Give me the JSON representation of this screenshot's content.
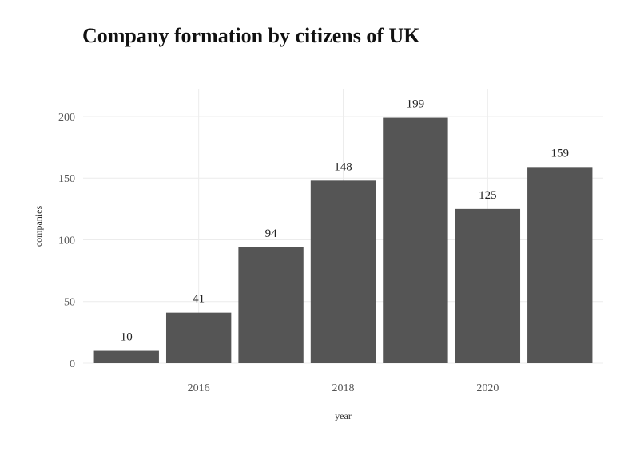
{
  "chart_data": {
    "type": "bar",
    "title": "Company formation by citizens of UK",
    "xlabel": "year",
    "ylabel": "companies",
    "categories": [
      2015,
      2016,
      2017,
      2018,
      2019,
      2020,
      2021
    ],
    "values": [
      10,
      41,
      94,
      148,
      199,
      125,
      159
    ],
    "data_labels": [
      "10",
      "41",
      "94",
      "148",
      "199",
      "125",
      "159"
    ],
    "x_ticks": [
      2016,
      2018,
      2020
    ],
    "x_tick_labels": [
      "2016",
      "2018",
      "2020"
    ],
    "y_ticks": [
      0,
      50,
      100,
      150,
      200
    ],
    "y_tick_labels": [
      "0",
      "50",
      "100",
      "150",
      "200"
    ],
    "ylim": [
      0,
      222
    ],
    "xlim": [
      2014.4,
      2021.6
    ],
    "grid": true,
    "legend": "none",
    "colors": {
      "bar": "#555555",
      "grid": "#ececec"
    }
  }
}
